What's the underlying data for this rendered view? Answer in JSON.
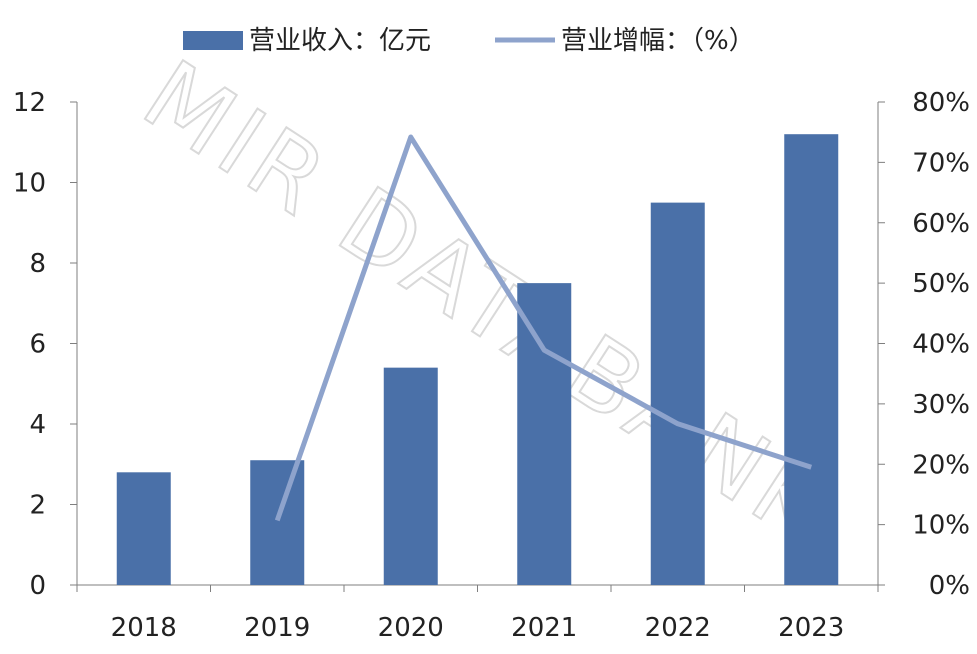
{
  "watermark": "MIR DATABANK",
  "legend": {
    "bar_label": "营业收入：亿元",
    "line_label": "营业增幅：（%）"
  },
  "colors": {
    "bar": "#4a70a8",
    "line": "#8ea3cc",
    "axis": "#7f7f7f"
  },
  "chart_data": {
    "type": "bar",
    "categories": [
      "2018",
      "2019",
      "2020",
      "2021",
      "2022",
      "2023"
    ],
    "series": [
      {
        "name": "营业收入：亿元",
        "type": "bar",
        "axis": "left",
        "values": [
          2.8,
          3.1,
          5.4,
          7.5,
          9.5,
          11.2
        ]
      },
      {
        "name": "营业增幅：（%）",
        "type": "line",
        "axis": "right",
        "values": [
          null,
          10.7,
          74.2,
          38.9,
          26.7,
          19.5
        ]
      }
    ],
    "left_axis": {
      "ylim": [
        0,
        12
      ],
      "ticks": [
        "0",
        "2",
        "4",
        "6",
        "8",
        "10",
        "12"
      ]
    },
    "right_axis": {
      "ylim": [
        0,
        80
      ],
      "ticks": [
        "0%",
        "10%",
        "20%",
        "30%",
        "40%",
        "50%",
        "60%",
        "70%",
        "80%"
      ]
    },
    "grid": false,
    "legend_position": "top"
  }
}
